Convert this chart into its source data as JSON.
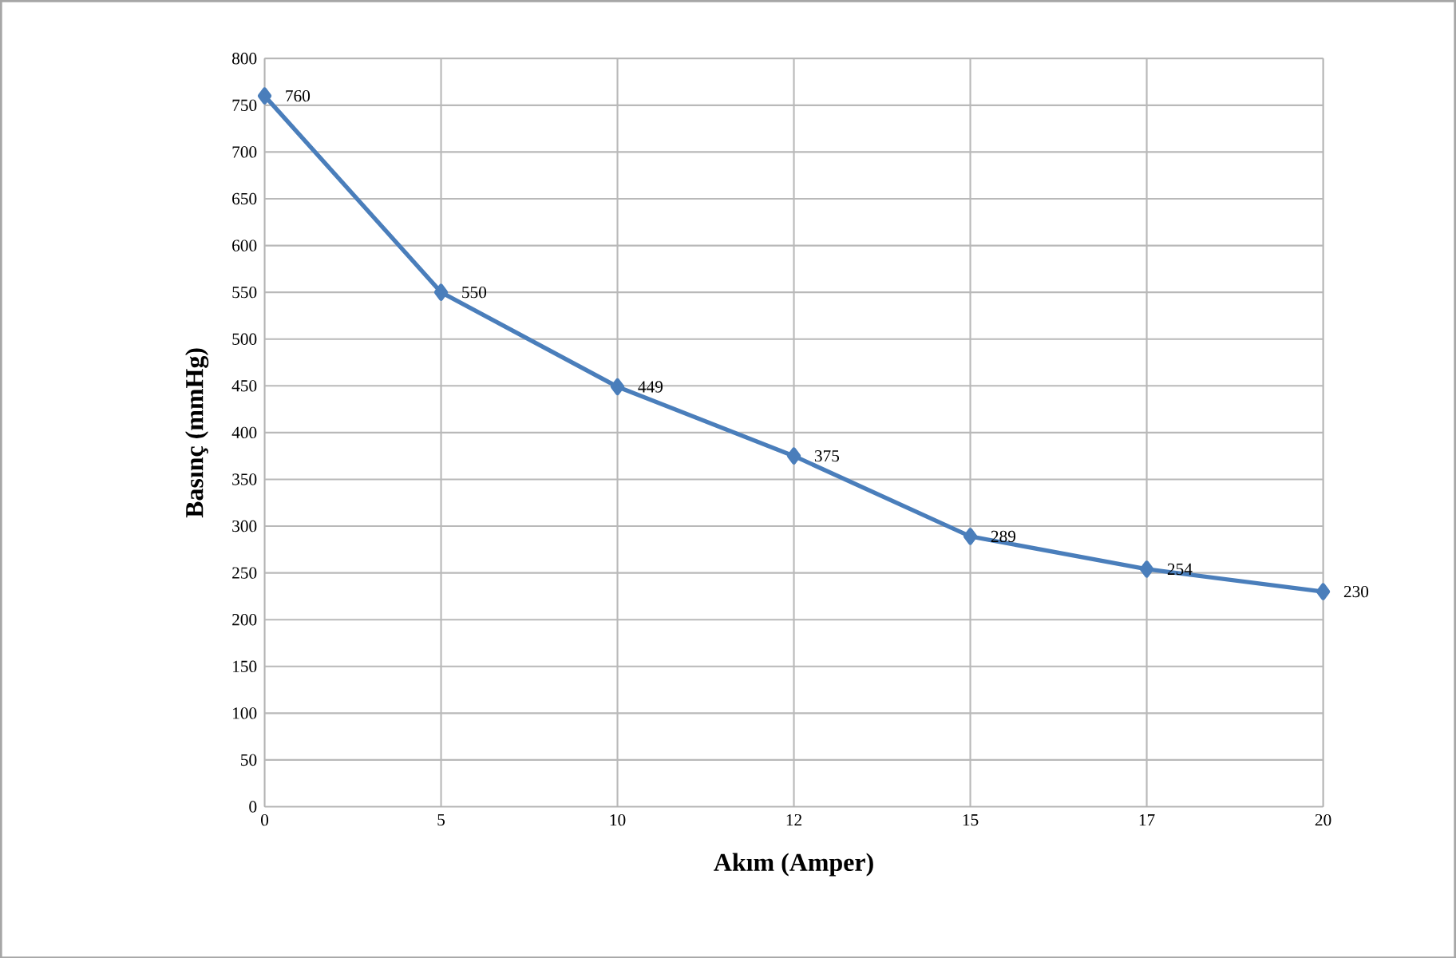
{
  "chart_data": {
    "type": "line",
    "xlabel": "Akım (Amper)",
    "ylabel": "Basınç (mmHg)",
    "categories": [
      "0",
      "5",
      "10",
      "12",
      "15",
      "17",
      "20"
    ],
    "values": [
      760,
      550,
      449,
      375,
      289,
      254,
      230
    ],
    "color": "#4a7ebb",
    "marker": "diamond",
    "data_labels": true,
    "grid": true,
    "ylim": [
      0,
      800
    ],
    "yticks": [
      0,
      50,
      100,
      150,
      200,
      250,
      300,
      350,
      400,
      450,
      500,
      550,
      600,
      650,
      700,
      750,
      800
    ]
  }
}
